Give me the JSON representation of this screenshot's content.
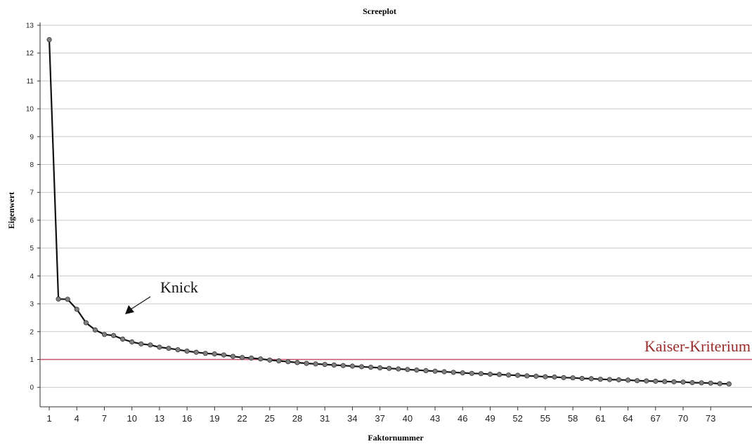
{
  "chart_data": {
    "type": "line",
    "title": "Screeplot",
    "xlabel": "Faktornummer",
    "ylabel": "Eigenwert",
    "ylim": [
      -0.7,
      13.1
    ],
    "xlim": [
      0,
      77.5
    ],
    "yticks": [
      0,
      1,
      2,
      3,
      4,
      5,
      6,
      7,
      8,
      9,
      10,
      11,
      12,
      13
    ],
    "xticks": [
      1,
      4,
      7,
      10,
      13,
      16,
      19,
      22,
      25,
      28,
      31,
      34,
      37,
      40,
      43,
      46,
      49,
      52,
      55,
      58,
      61,
      64,
      67,
      70,
      73
    ],
    "grid": "horizontal",
    "series": [
      {
        "values": [
          12.48,
          3.17,
          3.16,
          2.8,
          2.32,
          2.06,
          1.9,
          1.86,
          1.73,
          1.63,
          1.56,
          1.52,
          1.44,
          1.4,
          1.35,
          1.3,
          1.26,
          1.22,
          1.2,
          1.16,
          1.11,
          1.07,
          1.05,
          1.02,
          0.98,
          0.95,
          0.92,
          0.89,
          0.86,
          0.84,
          0.82,
          0.8,
          0.78,
          0.76,
          0.74,
          0.72,
          0.7,
          0.68,
          0.66,
          0.64,
          0.62,
          0.6,
          0.58,
          0.56,
          0.54,
          0.52,
          0.5,
          0.49,
          0.47,
          0.46,
          0.44,
          0.43,
          0.41,
          0.4,
          0.38,
          0.37,
          0.35,
          0.34,
          0.32,
          0.31,
          0.29,
          0.28,
          0.27,
          0.26,
          0.24,
          0.23,
          0.22,
          0.21,
          0.2,
          0.19,
          0.17,
          0.16,
          0.15,
          0.13,
          0.12
        ]
      }
    ],
    "reference_line": {
      "y": 1,
      "label": "Kaiser-Kriterium",
      "color": "#c8506a",
      "label_color": "#9b2a2a"
    },
    "annotation": {
      "text": "Knick",
      "points_to_x": 6
    },
    "line_color": "#111111",
    "marker_color": "#808080"
  }
}
